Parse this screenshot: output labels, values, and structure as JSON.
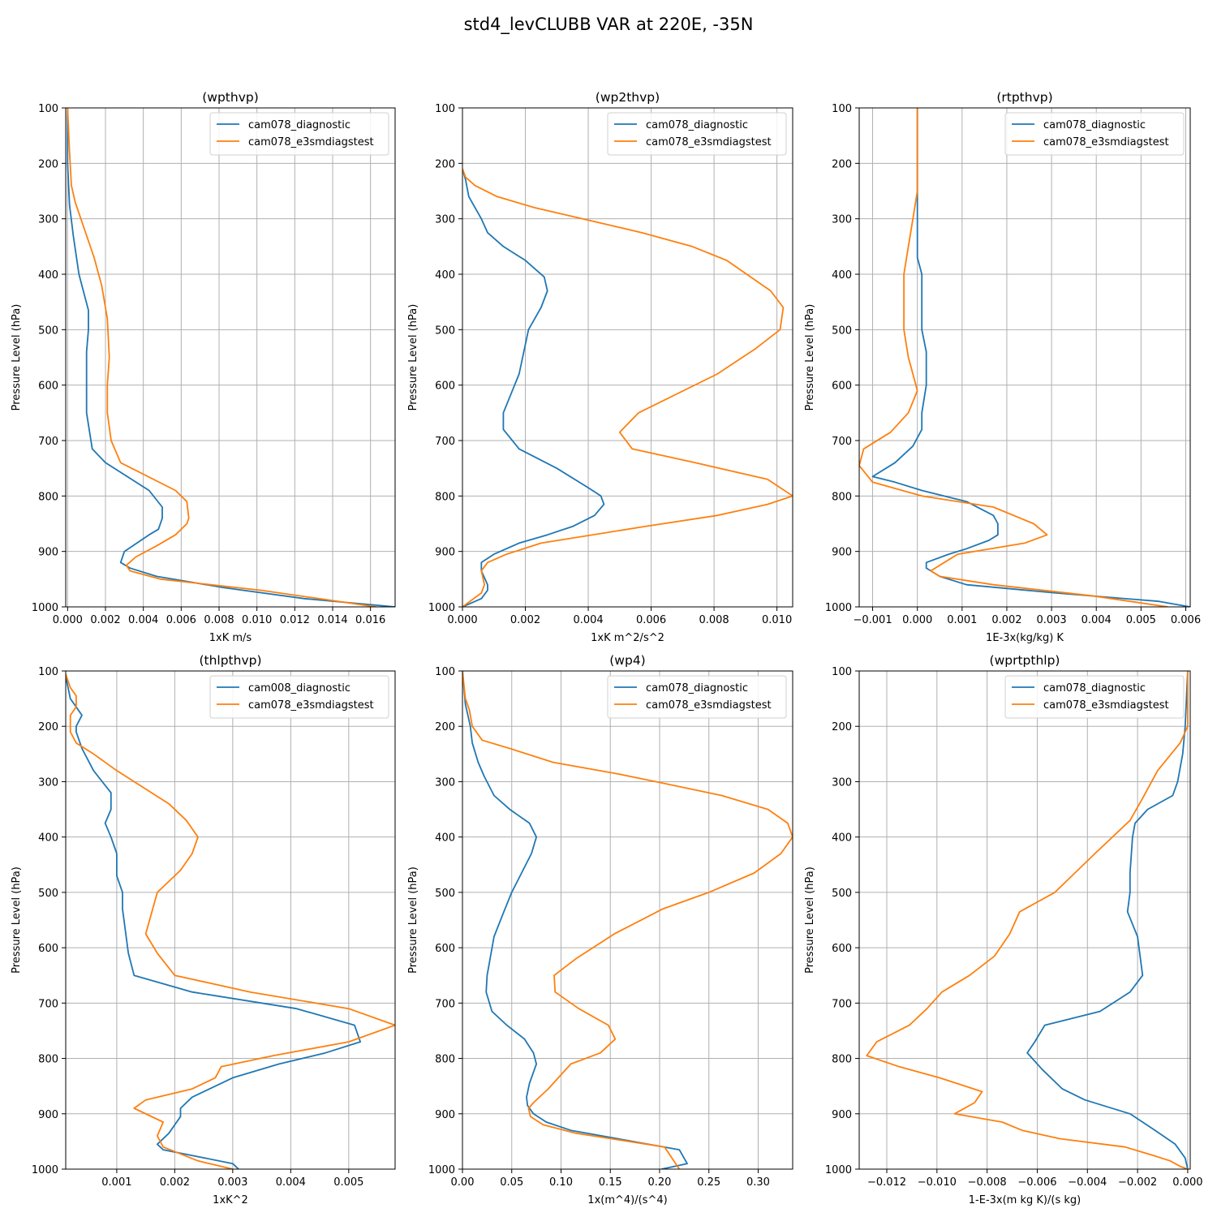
{
  "figure": {
    "title": "std4_levCLUBB VAR at 220E, -35N"
  },
  "colors": {
    "series1": "#1f77b4",
    "series2": "#ff7f0e",
    "grid": "#b0b0b0",
    "axis": "#000000"
  },
  "chart_data": [
    {
      "type": "line",
      "title": "(wpthvp)",
      "xlabel": "1xK m/s",
      "ylabel": "Pressure Level (hPa)",
      "xlim": [
        -0.0001,
        0.0173
      ],
      "ylim": [
        1000,
        100
      ],
      "xticks": [
        0,
        0.002,
        0.004,
        0.006,
        0.008,
        0.01,
        0.012,
        0.014,
        0.016
      ],
      "xticklabels": [
        "0.000",
        "0.002",
        "0.004",
        "0.006",
        "0.008",
        "0.010",
        "0.012",
        "0.014",
        "0.016"
      ],
      "yticks": [
        100,
        200,
        300,
        400,
        500,
        600,
        700,
        800,
        900,
        1000
      ],
      "legend": "top-right",
      "series": [
        {
          "name": "cam078_diagnostic",
          "x": [
            0,
            0,
            0,
            0.0001,
            0.0003,
            0.0006,
            0.0011,
            0.0011,
            0.001,
            0.001,
            0.001,
            0.0013,
            0.002,
            0.0043,
            0.005,
            0.005,
            0.0048,
            0.0043,
            0.003,
            0.0028,
            0.0033,
            0.0047,
            0.0082,
            0.0125,
            0.0173
          ],
          "y": [
            100,
            165,
            200,
            275,
            330,
            400,
            465,
            500,
            540,
            600,
            650,
            715,
            740,
            790,
            820,
            840,
            860,
            870,
            900,
            920,
            930,
            945,
            965,
            985,
            1000
          ]
        },
        {
          "name": "cam078_e3smdiagstest",
          "x": [
            0,
            0.0001,
            0.0002,
            0.0004,
            0.0008,
            0.0014,
            0.0018,
            0.0021,
            0.0022,
            0.0021,
            0.0021,
            0.0023,
            0.0028,
            0.0057,
            0.0063,
            0.0064,
            0.0063,
            0.0057,
            0.0047,
            0.0036,
            0.0031,
            0.0033,
            0.0049,
            0.0102,
            0.0163
          ],
          "y": [
            100,
            180,
            240,
            270,
            310,
            370,
            420,
            480,
            550,
            600,
            650,
            700,
            740,
            790,
            810,
            840,
            850,
            870,
            890,
            910,
            925,
            935,
            950,
            970,
            1000
          ]
        }
      ]
    },
    {
      "type": "line",
      "title": "(wp2thvp)",
      "xlabel": "1xK m^2/s^2",
      "ylabel": "Pressure Level (hPa)",
      "xlim": [
        0,
        0.0105
      ],
      "ylim": [
        1000,
        100
      ],
      "xticks": [
        0,
        0.002,
        0.004,
        0.006,
        0.008,
        0.01
      ],
      "xticklabels": [
        "0.000",
        "0.002",
        "0.004",
        "0.006",
        "0.008",
        "0.010"
      ],
      "yticks": [
        100,
        200,
        300,
        400,
        500,
        600,
        700,
        800,
        900,
        1000
      ],
      "legend": "top-right",
      "series": [
        {
          "name": "cam078_diagnostic",
          "x": [
            0,
            0.0001,
            0.0002,
            0.0006,
            0.0008,
            0.0013,
            0.002,
            0.0026,
            0.0027,
            0.0025,
            0.0021,
            0.0018,
            0.0013,
            0.0013,
            0.0018,
            0.003,
            0.004,
            0.0044,
            0.0045,
            0.0042,
            0.0035,
            0.0027,
            0.0018,
            0.001,
            0.0006,
            0.0006,
            0.0008,
            0.0008,
            0.0006,
            0
          ],
          "y": [
            210,
            230,
            260,
            300,
            325,
            350,
            375,
            405,
            430,
            460,
            500,
            580,
            650,
            680,
            715,
            750,
            785,
            800,
            815,
            835,
            855,
            870,
            885,
            905,
            920,
            935,
            960,
            970,
            985,
            1000
          ]
        },
        {
          "name": "cam078_e3smdiagstest",
          "x": [
            0,
            0.0001,
            0.0004,
            0.0011,
            0.0023,
            0.0042,
            0.0057,
            0.0073,
            0.0084,
            0.0098,
            0.0102,
            0.0101,
            0.0093,
            0.0081,
            0.0056,
            0.005,
            0.0054,
            0.0074,
            0.0097,
            0.0105,
            0.0097,
            0.0081,
            0.0058,
            0.0025,
            0.0014,
            0.0008,
            0.0006,
            0.0007,
            0.0006,
            0
          ],
          "y": [
            210,
            225,
            240,
            260,
            280,
            305,
            325,
            350,
            375,
            430,
            460,
            500,
            535,
            580,
            650,
            685,
            715,
            740,
            770,
            800,
            815,
            835,
            855,
            885,
            905,
            920,
            935,
            960,
            975,
            1000
          ]
        }
      ]
    },
    {
      "type": "line",
      "title": "(rtpthvp)",
      "xlabel": "1E-3x(kg/kg) K",
      "ylabel": "Pressure Level (hPa)",
      "xlim": [
        -0.0013,
        0.0061
      ],
      "ylim": [
        1000,
        100
      ],
      "xticks": [
        -0.001,
        0,
        0.001,
        0.002,
        0.003,
        0.004,
        0.005,
        0.006
      ],
      "xticklabels": [
        "−0.001",
        "0.000",
        "0.001",
        "0.002",
        "0.003",
        "0.004",
        "0.005",
        "0.006"
      ],
      "yticks": [
        100,
        200,
        300,
        400,
        500,
        600,
        700,
        800,
        900,
        1000
      ],
      "legend": "top-right",
      "series": [
        {
          "name": "cam078_diagnostic",
          "x": [
            0,
            0,
            0,
            0,
            0.0001,
            0.0001,
            0.0001,
            0.0001,
            0.0002,
            0.0002,
            0.0001,
            0.0001,
            -0.0001,
            -0.0005,
            -0.001,
            -0.0005,
            0.0001,
            0.0011,
            0.0017,
            0.0018,
            0.0018,
            0.0016,
            0.0011,
            0.0007,
            0.0002,
            0.0002,
            0.0005,
            0.0011,
            0.0031,
            0.0054,
            0.0061
          ],
          "y": [
            100,
            200,
            300,
            370,
            400,
            430,
            465,
            500,
            540,
            600,
            650,
            680,
            710,
            740,
            765,
            775,
            790,
            810,
            835,
            850,
            870,
            880,
            895,
            905,
            920,
            930,
            945,
            960,
            975,
            990,
            1000
          ]
        },
        {
          "name": "cam078_e3smdiagstest",
          "x": [
            0,
            0,
            0,
            -0.0001,
            -0.0002,
            -0.0003,
            -0.0003,
            -0.0003,
            -0.0002,
            -0.0001,
            0,
            -0.0002,
            -0.0006,
            -0.0012,
            -0.0013,
            -0.001,
            0.0001,
            0.0017,
            0.0026,
            0.0029,
            0.0024,
            0.0009,
            0.0006,
            0.0003,
            0.0005,
            0.0017,
            0.0039,
            0.0056
          ],
          "y": [
            100,
            200,
            250,
            300,
            350,
            400,
            450,
            500,
            550,
            580,
            610,
            650,
            685,
            715,
            745,
            775,
            800,
            820,
            850,
            870,
            885,
            905,
            920,
            935,
            945,
            960,
            980,
            1000
          ]
        }
      ]
    },
    {
      "type": "line",
      "title": "(thlpthvp)",
      "xlabel": "1xK^2",
      "ylabel": "Pressure Level (hPa)",
      "xlim": [
        0.00012,
        0.0058
      ],
      "ylim": [
        1000,
        100
      ],
      "xticks": [
        0.001,
        0.002,
        0.003,
        0.004,
        0.005
      ],
      "xticklabels": [
        "0.001",
        "0.002",
        "0.003",
        "0.004",
        "0.005"
      ],
      "yticks": [
        100,
        200,
        300,
        400,
        500,
        600,
        700,
        800,
        900,
        1000
      ],
      "legend": "top-right",
      "series": [
        {
          "name": "cam008_diagnostic",
          "x": [
            0.0001,
            0.0002,
            0.0003,
            0.0004,
            0.0003,
            0.0003,
            0.0004,
            0.0006,
            0.0009,
            0.0009,
            0.0008,
            0.0009,
            0.001,
            0.001,
            0.0011,
            0.0011,
            0.0012,
            0.0013,
            0.0023,
            0.0041,
            0.0051,
            0.0052,
            0.0046,
            0.0038,
            0.003,
            0.0023,
            0.0021,
            0.0021,
            0.002,
            0.0019,
            0.0017,
            0.0018,
            0.003,
            0.0031
          ],
          "y": [
            100,
            150,
            165,
            180,
            200,
            210,
            240,
            280,
            320,
            350,
            375,
            400,
            430,
            470,
            500,
            530,
            610,
            650,
            680,
            710,
            740,
            770,
            790,
            810,
            835,
            870,
            890,
            905,
            920,
            935,
            955,
            965,
            990,
            1000
          ]
        },
        {
          "name": "cam078_e3smdiagstest",
          "x": [
            0.0001,
            0.0002,
            0.0003,
            0.0003,
            0.0002,
            0.0002,
            0.0003,
            0.0006,
            0.001,
            0.0016,
            0.0019,
            0.0022,
            0.0024,
            0.0023,
            0.0021,
            0.0017,
            0.0015,
            0.0017,
            0.002,
            0.0033,
            0.005,
            0.0058,
            0.005,
            0.0037,
            0.0028,
            0.0027,
            0.0023,
            0.0015,
            0.0013,
            0.0018,
            0.0017,
            0.0018,
            0.0024,
            0.003
          ],
          "y": [
            100,
            130,
            145,
            165,
            180,
            210,
            230,
            250,
            280,
            320,
            340,
            370,
            400,
            430,
            460,
            500,
            575,
            610,
            650,
            680,
            710,
            740,
            770,
            795,
            815,
            835,
            855,
            875,
            890,
            915,
            940,
            960,
            985,
            1000
          ]
        }
      ]
    },
    {
      "type": "line",
      "title": "(wp4)",
      "xlabel": "1x(m^4)/(s^4)",
      "ylabel": "Pressure Level (hPa)",
      "xlim": [
        0,
        0.335
      ],
      "ylim": [
        1000,
        100
      ],
      "xticks": [
        0,
        0.05,
        0.1,
        0.15,
        0.2,
        0.25,
        0.3
      ],
      "xticklabels": [
        "0.00",
        "0.05",
        "0.10",
        "0.15",
        "0.20",
        "0.25",
        "0.30"
      ],
      "yticks": [
        100,
        200,
        300,
        400,
        500,
        600,
        700,
        800,
        900,
        1000
      ],
      "legend": "top-right",
      "series": [
        {
          "name": "cam078_diagnostic",
          "x": [
            0,
            0.003,
            0.008,
            0.01,
            0.016,
            0.022,
            0.032,
            0.048,
            0.068,
            0.075,
            0.07,
            0.05,
            0.042,
            0.032,
            0.025,
            0.024,
            0.03,
            0.045,
            0.063,
            0.072,
            0.075,
            0.073,
            0.068,
            0.065,
            0.066,
            0.072,
            0.085,
            0.11,
            0.22,
            0.228,
            0.202
          ],
          "y": [
            100,
            160,
            200,
            230,
            265,
            290,
            325,
            350,
            375,
            400,
            430,
            500,
            535,
            580,
            650,
            680,
            715,
            740,
            765,
            790,
            810,
            820,
            845,
            870,
            885,
            900,
            915,
            930,
            965,
            990,
            1000
          ]
        },
        {
          "name": "cam078_e3smdiagstest",
          "x": [
            0,
            0.003,
            0.007,
            0.01,
            0.02,
            0.048,
            0.092,
            0.155,
            0.196,
            0.263,
            0.31,
            0.33,
            0.335,
            0.323,
            0.296,
            0.25,
            0.203,
            0.154,
            0.115,
            0.093,
            0.094,
            0.118,
            0.148,
            0.155,
            0.14,
            0.11,
            0.087,
            0.072,
            0.067,
            0.069,
            0.082,
            0.115,
            0.205,
            0.22
          ],
          "y": [
            100,
            150,
            170,
            200,
            225,
            240,
            265,
            285,
            300,
            325,
            350,
            375,
            400,
            430,
            465,
            500,
            530,
            575,
            620,
            650,
            680,
            710,
            740,
            765,
            790,
            810,
            855,
            880,
            890,
            905,
            920,
            935,
            960,
            1000
          ]
        }
      ]
    },
    {
      "type": "line",
      "title": "(wprtpthlp)",
      "xlabel": "1-E-3x(m kg K)/(s kg)",
      "ylabel": "Pressure Level (hPa)",
      "xlim": [
        -0.0131,
        0.0001
      ],
      "ylim": [
        1000,
        100
      ],
      "xticks": [
        -0.012,
        -0.01,
        -0.008,
        -0.006,
        -0.004,
        -0.002,
        0
      ],
      "xticklabels": [
        "−0.012",
        "−0.010",
        "−0.008",
        "−0.006",
        "−0.004",
        "−0.002",
        "0.000"
      ],
      "yticks": [
        100,
        200,
        300,
        400,
        500,
        600,
        700,
        800,
        900,
        1000
      ],
      "legend": "top-right",
      "series": [
        {
          "name": "cam078_diagnostic",
          "x": [
            0,
            -0.0001,
            -0.0002,
            -0.0004,
            -0.0006,
            -0.0016,
            -0.0021,
            -0.0022,
            -0.0023,
            -0.0023,
            -0.0024,
            -0.002,
            -0.0018,
            -0.0023,
            -0.0035,
            -0.0057,
            -0.0061,
            -0.0064,
            -0.0058,
            -0.005,
            -0.0041,
            -0.0023,
            -0.0013,
            -0.0005,
            -0.0001,
            0
          ],
          "y": [
            100,
            200,
            250,
            300,
            325,
            350,
            375,
            400,
            465,
            500,
            535,
            580,
            650,
            680,
            715,
            740,
            770,
            790,
            820,
            855,
            875,
            900,
            930,
            955,
            980,
            1000
          ]
        },
        {
          "name": "cam078_e3smdiagstest",
          "x": [
            0,
            0,
            -0.0003,
            -0.0012,
            -0.0018,
            -0.0023,
            -0.0037,
            -0.0053,
            -0.0067,
            -0.0071,
            -0.0077,
            -0.0087,
            -0.0098,
            -0.0104,
            -0.0111,
            -0.0124,
            -0.0128,
            -0.0115,
            -0.0099,
            -0.0082,
            -0.0085,
            -0.0093,
            -0.0074,
            -0.0066,
            -0.0051,
            -0.0025,
            -0.0014,
            -0.0007,
            -0.0003,
            0
          ],
          "y": [
            100,
            200,
            230,
            280,
            330,
            370,
            430,
            500,
            535,
            575,
            615,
            650,
            680,
            710,
            740,
            770,
            795,
            815,
            835,
            860,
            880,
            900,
            915,
            930,
            945,
            960,
            975,
            985,
            995,
            1000
          ]
        }
      ]
    }
  ]
}
